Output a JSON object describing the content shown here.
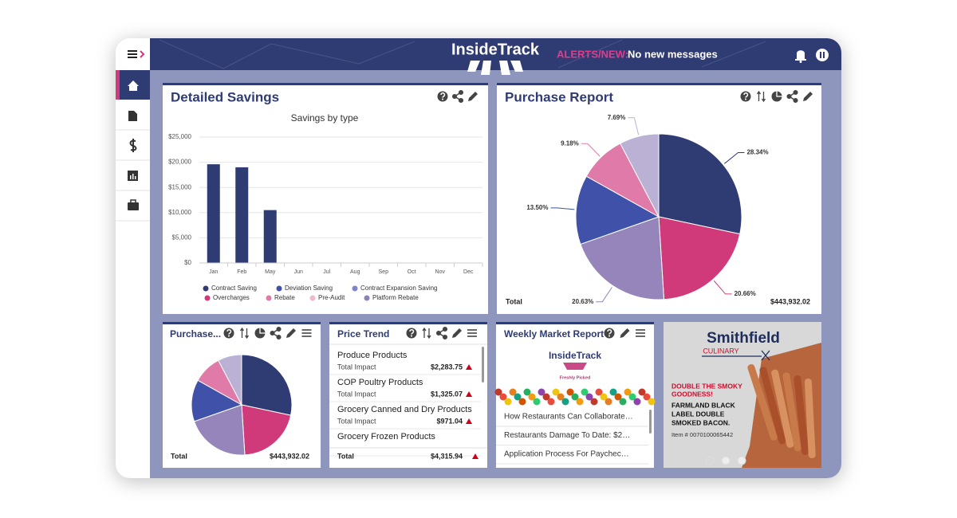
{
  "topbar": {
    "logo": "InsideTrack",
    "alerts_label": "ALERTS/NEW:",
    "alerts_message": "No new messages"
  },
  "widgets": {
    "detailed_savings": {
      "title": "Detailed Savings",
      "chart_data": {
        "type": "bar",
        "title": "Savings by type",
        "stacked": true,
        "grid": true,
        "legend": "bottom",
        "categories": [
          "Jan",
          "Feb",
          "May",
          "Jun",
          "Jul",
          "Aug",
          "Sep",
          "Oct",
          "Nov",
          "Dec"
        ],
        "series": [
          {
            "name": "Contract Saving",
            "color": "#2f3b73",
            "values": [
              19600,
              19000,
              10500,
              0,
              0,
              0,
              0,
              0,
              0,
              0
            ]
          },
          {
            "name": "Deviation Saving",
            "color": "#3f51a8",
            "values": [
              0,
              0,
              0,
              0,
              0,
              0,
              0,
              0,
              0,
              0
            ]
          },
          {
            "name": "Contract Expansion Saving",
            "color": "#7b87c8",
            "values": [
              0,
              0,
              0,
              0,
              0,
              0,
              0,
              0,
              0,
              0
            ]
          },
          {
            "name": "Overcharges",
            "color": "#d03a7a",
            "values": [
              0,
              0,
              0,
              0,
              0,
              0,
              0,
              0,
              0,
              0
            ]
          },
          {
            "name": "Rebate",
            "color": "#e07aa8",
            "values": [
              0,
              0,
              0,
              0,
              0,
              0,
              0,
              0,
              0,
              0
            ]
          },
          {
            "name": "Pre-Audit",
            "color": "#f0b8cf",
            "values": [
              0,
              0,
              0,
              0,
              0,
              0,
              0,
              0,
              0,
              0
            ]
          },
          {
            "name": "Platform Rebate",
            "color": "#9080b8",
            "values": [
              0,
              0,
              0,
              0,
              0,
              0,
              0,
              0,
              0,
              0
            ]
          }
        ],
        "ylim": [
          0,
          25000
        ],
        "yticks": [
          {
            "value": 0,
            "label": "$0"
          },
          {
            "value": 5000,
            "label": "$5,000"
          },
          {
            "value": 10000,
            "label": "$10,000"
          },
          {
            "value": 15000,
            "label": "$15,000"
          },
          {
            "value": 20000,
            "label": "$20,000"
          },
          {
            "value": 25000,
            "label": "$25,000"
          }
        ]
      }
    },
    "purchase_report": {
      "title": "Purchase Report",
      "total_label": "Total",
      "total_value": "$443,932.02",
      "chart_data": {
        "type": "pie",
        "values": [
          28.34,
          20.66,
          20.63,
          13.5,
          9.18,
          7.69
        ],
        "value_labels": [
          "28.34%",
          "20.66%",
          "20.63%",
          "13.50%",
          "9.18%",
          "7.69%"
        ],
        "colors": [
          "#2f3b73",
          "#d03a7a",
          "#9585bb",
          "#3f51a8",
          "#e07aa8",
          "#bab1d4"
        ]
      }
    },
    "purchase_small": {
      "title": "Purchase...",
      "total_label": "Total",
      "total_value": "$443,932.02"
    },
    "price_trend": {
      "title": "Price Trend",
      "items": [
        {
          "name": "Produce Products",
          "label": "Total Impact",
          "amount": "$2,283.75"
        },
        {
          "name": "COP Poultry Products",
          "label": "Total Impact",
          "amount": "$1,325.07"
        },
        {
          "name": "Grocery Canned and Dry Products",
          "label": "Total Impact",
          "amount": "$971.04"
        },
        {
          "name": "Grocery Frozen Products"
        }
      ],
      "total_label": "Total",
      "total_amount": "$4,315.94"
    },
    "weekly_market": {
      "title": "Weekly Market Report",
      "logo": "InsideTrack",
      "tagline": "Freshly Picked",
      "articles": [
        "How Restaurants Can Collaborate…",
        "Restaurants Damage To Date: $2…",
        "Application Process For Paychec…"
      ]
    },
    "ad": {
      "brand": "Smithfield",
      "brand_sub": "CULINARY",
      "headline": [
        "DOUBLE THE SMOKY",
        "GOODNESS!"
      ],
      "product": [
        "FARMLAND BLACK",
        "LABEL DOUBLE",
        "SMOKED BACON."
      ],
      "item": "Item # 0070100065442"
    }
  }
}
